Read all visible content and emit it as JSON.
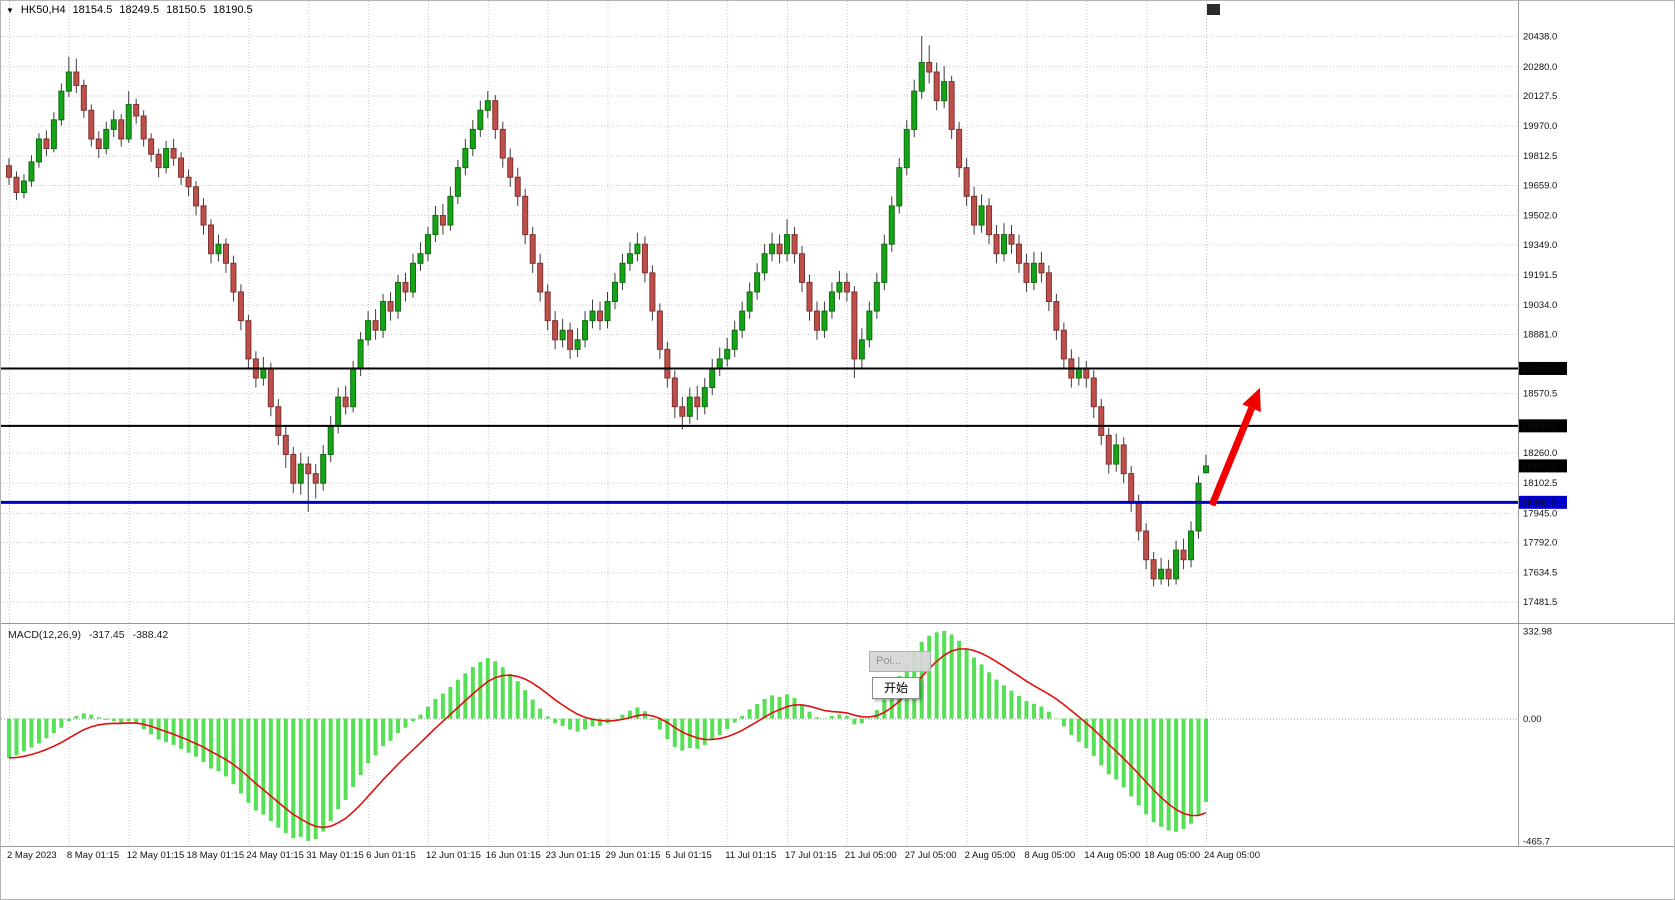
{
  "header": {
    "symbol_period": "HK50,H4",
    "open": "18154.5",
    "high": "18249.5",
    "low": "18150.5",
    "close": "18190.5"
  },
  "indicator": {
    "name": "MACD(12,26,9)",
    "macd_value": "-317.45",
    "signal_value": "-388.42"
  },
  "popup": {
    "tooltip_text": "Poi...",
    "button_label": "开始"
  },
  "colors": {
    "up": "#17a317",
    "down": "#bf4f4a",
    "macd_hist": "#55e055",
    "macd_signal": "#e01010",
    "support_line_blue": "#0000c8",
    "resistance_line_black": "#000000",
    "arrow_red": "#f20000"
  },
  "chart_data": [
    {
      "type": "candlestick",
      "title": "HK50,H4",
      "timeframe": "H4",
      "x_axis_labels": [
        {
          "i": 0,
          "t": "2 May 2023"
        },
        {
          "i": 8,
          "t": "8 May 01:15"
        },
        {
          "i": 16,
          "t": "12 May 01:15"
        },
        {
          "i": 24,
          "t": "18 May 01:15"
        },
        {
          "i": 32,
          "t": "24 May 01:15"
        },
        {
          "i": 40,
          "t": "31 May 01:15"
        },
        {
          "i": 48,
          "t": "6 Jun 01:15"
        },
        {
          "i": 56,
          "t": "12 Jun 01:15"
        },
        {
          "i": 64,
          "t": "16 Jun 01:15"
        },
        {
          "i": 72,
          "t": "23 Jun 01:15"
        },
        {
          "i": 80,
          "t": "29 Jun 01:15"
        },
        {
          "i": 88,
          "t": "5 Jul 01:15"
        },
        {
          "i": 96,
          "t": "11 Jul 01:15"
        },
        {
          "i": 104,
          "t": "17 Jul 01:15"
        },
        {
          "i": 112,
          "t": "21 Jul 05:00"
        },
        {
          "i": 120,
          "t": "27 Jul 05:00"
        },
        {
          "i": 128,
          "t": "2 Aug 05:00"
        },
        {
          "i": 136,
          "t": "8 Aug 05:00"
        },
        {
          "i": 144,
          "t": "14 Aug 05:00"
        },
        {
          "i": 152,
          "t": "18 Aug 05:00"
        },
        {
          "i": 160,
          "t": "24 Aug 05:00"
        }
      ],
      "y_ticks": [
        20438.0,
        20280.0,
        20127.5,
        19970.0,
        19812.5,
        19659.0,
        19502.0,
        19349.0,
        19191.5,
        19034.0,
        18881.0,
        18570.5,
        18260.0,
        18102.5,
        17945.0,
        17792.0,
        17634.5,
        17481.5
      ],
      "ylim": [
        17390,
        20590
      ],
      "hlines": [
        {
          "price": 18700.0,
          "color": "#000000",
          "width": 2
        },
        {
          "price": 18400.0,
          "color": "#000000",
          "width": 2
        },
        {
          "price": 18000.0,
          "color": "#0000c8",
          "width": 3
        }
      ],
      "current_price_tag": 18190.5,
      "up_color": "#17a317",
      "down_color": "#bf4f4a",
      "annotation_arrow": {
        "from": {
          "index": 160.8,
          "price": 17985
        },
        "to": {
          "index": 166.8,
          "price": 18560
        },
        "color": "#f20000"
      },
      "candles": [
        [
          19760,
          19800,
          19660,
          19700
        ],
        [
          19700,
          19730,
          19580,
          19620
        ],
        [
          19620,
          19715,
          19590,
          19680
        ],
        [
          19680,
          19815,
          19650,
          19780
        ],
        [
          19780,
          19930,
          19750,
          19900
        ],
        [
          19900,
          19945,
          19810,
          19850
        ],
        [
          19850,
          20040,
          19830,
          20000
        ],
        [
          20000,
          20190,
          19970,
          20150
        ],
        [
          20150,
          20330,
          20120,
          20250
        ],
        [
          20250,
          20320,
          20140,
          20180
        ],
        [
          20180,
          20210,
          20010,
          20050
        ],
        [
          20050,
          20080,
          19860,
          19900
        ],
        [
          19900,
          19940,
          19800,
          19850
        ],
        [
          19850,
          19990,
          19820,
          19950
        ],
        [
          19950,
          20050,
          19910,
          20000
        ],
        [
          20000,
          20030,
          19860,
          19900
        ],
        [
          19900,
          20150,
          19880,
          20080
        ],
        [
          20080,
          20110,
          19980,
          20020
        ],
        [
          20020,
          20050,
          19860,
          19900
        ],
        [
          19900,
          19930,
          19780,
          19820
        ],
        [
          19820,
          19850,
          19700,
          19750
        ],
        [
          19750,
          19890,
          19720,
          19850
        ],
        [
          19850,
          19900,
          19760,
          19800
        ],
        [
          19800,
          19830,
          19660,
          19700
        ],
        [
          19700,
          19740,
          19600,
          19650
        ],
        [
          19650,
          19680,
          19500,
          19550
        ],
        [
          19550,
          19590,
          19400,
          19450
        ],
        [
          19450,
          19480,
          19250,
          19300
        ],
        [
          19300,
          19400,
          19260,
          19350
        ],
        [
          19350,
          19380,
          19200,
          19250
        ],
        [
          19250,
          19290,
          19050,
          19100
        ],
        [
          19100,
          19140,
          18900,
          18950
        ],
        [
          18950,
          18980,
          18700,
          18750
        ],
        [
          18750,
          18790,
          18600,
          18650
        ],
        [
          18650,
          18760,
          18610,
          18700
        ],
        [
          18700,
          18730,
          18450,
          18500
        ],
        [
          18500,
          18540,
          18300,
          18350
        ],
        [
          18350,
          18400,
          18180,
          18250
        ],
        [
          18250,
          18290,
          18050,
          18100
        ],
        [
          18100,
          18260,
          18040,
          18200
        ],
        [
          18200,
          18240,
          17950,
          18150
        ],
        [
          18150,
          18200,
          18020,
          18100
        ],
        [
          18100,
          18300,
          18060,
          18250
        ],
        [
          18250,
          18450,
          18210,
          18400
        ],
        [
          18400,
          18600,
          18360,
          18550
        ],
        [
          18550,
          18610,
          18460,
          18500
        ],
        [
          18500,
          18740,
          18470,
          18700
        ],
        [
          18700,
          18890,
          18660,
          18850
        ],
        [
          18850,
          19000,
          18820,
          18950
        ],
        [
          18950,
          19010,
          18850,
          18900
        ],
        [
          18900,
          19090,
          18860,
          19050
        ],
        [
          19050,
          19100,
          18950,
          19000
        ],
        [
          19000,
          19190,
          18960,
          19150
        ],
        [
          19150,
          19200,
          19050,
          19100
        ],
        [
          19100,
          19300,
          19070,
          19250
        ],
        [
          19250,
          19360,
          19210,
          19300
        ],
        [
          19300,
          19440,
          19260,
          19400
        ],
        [
          19400,
          19550,
          19360,
          19500
        ],
        [
          19500,
          19560,
          19400,
          19450
        ],
        [
          19450,
          19650,
          19420,
          19600
        ],
        [
          19600,
          19790,
          19560,
          19750
        ],
        [
          19750,
          19900,
          19710,
          19850
        ],
        [
          19850,
          20000,
          19810,
          19950
        ],
        [
          19950,
          20100,
          19910,
          20050
        ],
        [
          20050,
          20150,
          20010,
          20100
        ],
        [
          20100,
          20130,
          19900,
          19950
        ],
        [
          19950,
          19990,
          19750,
          19800
        ],
        [
          19800,
          19850,
          19650,
          19700
        ],
        [
          19700,
          19750,
          19550,
          19600
        ],
        [
          19600,
          19640,
          19350,
          19400
        ],
        [
          19400,
          19440,
          19200,
          19250
        ],
        [
          19250,
          19300,
          19050,
          19100
        ],
        [
          19100,
          19140,
          18900,
          18950
        ],
        [
          18950,
          19000,
          18800,
          18850
        ],
        [
          18850,
          18960,
          18810,
          18900
        ],
        [
          18900,
          18940,
          18750,
          18800
        ],
        [
          18800,
          18910,
          18760,
          18850
        ],
        [
          18850,
          19000,
          18810,
          18950
        ],
        [
          18950,
          19060,
          18910,
          19000
        ],
        [
          19000,
          19050,
          18900,
          18950
        ],
        [
          18950,
          19100,
          18910,
          19050
        ],
        [
          19050,
          19200,
          19010,
          19150
        ],
        [
          19150,
          19300,
          19110,
          19250
        ],
        [
          19250,
          19360,
          19210,
          19300
        ],
        [
          19300,
          19410,
          19260,
          19350
        ],
        [
          19350,
          19390,
          19150,
          19200
        ],
        [
          19200,
          19240,
          18950,
          19000
        ],
        [
          19000,
          19040,
          18750,
          18800
        ],
        [
          18800,
          18840,
          18600,
          18650
        ],
        [
          18650,
          18690,
          18440,
          18500
        ],
        [
          18500,
          18550,
          18380,
          18450
        ],
        [
          18450,
          18600,
          18410,
          18550
        ],
        [
          18550,
          18610,
          18430,
          18500
        ],
        [
          18500,
          18650,
          18460,
          18600
        ],
        [
          18600,
          18750,
          18560,
          18700
        ],
        [
          18700,
          18810,
          18660,
          18750
        ],
        [
          18750,
          18860,
          18710,
          18800
        ],
        [
          18800,
          18950,
          18760,
          18900
        ],
        [
          18900,
          19050,
          18860,
          19000
        ],
        [
          19000,
          19150,
          18960,
          19100
        ],
        [
          19100,
          19250,
          19060,
          19200
        ],
        [
          19200,
          19350,
          19160,
          19300
        ],
        [
          19300,
          19410,
          19260,
          19350
        ],
        [
          19350,
          19400,
          19250,
          19300
        ],
        [
          19300,
          19480,
          19260,
          19400
        ],
        [
          19400,
          19440,
          19250,
          19300
        ],
        [
          19300,
          19340,
          19100,
          19150
        ],
        [
          19150,
          19190,
          18950,
          19000
        ],
        [
          19000,
          19050,
          18850,
          18900
        ],
        [
          18900,
          19050,
          18860,
          19000
        ],
        [
          19000,
          19150,
          18960,
          19100
        ],
        [
          19100,
          19210,
          19060,
          19150
        ],
        [
          19150,
          19200,
          19050,
          19100
        ],
        [
          19100,
          19130,
          18650,
          18750
        ],
        [
          18750,
          18910,
          18700,
          18850
        ],
        [
          18850,
          19050,
          18810,
          19000
        ],
        [
          19000,
          19200,
          18960,
          19150
        ],
        [
          19150,
          19400,
          19110,
          19350
        ],
        [
          19350,
          19600,
          19310,
          19550
        ],
        [
          19550,
          19800,
          19510,
          19750
        ],
        [
          19750,
          20000,
          19710,
          19950
        ],
        [
          19950,
          20210,
          19910,
          20150
        ],
        [
          20150,
          20438,
          20110,
          20300
        ],
        [
          20300,
          20390,
          20190,
          20250
        ],
        [
          20250,
          20300,
          20050,
          20100
        ],
        [
          20100,
          20280,
          20060,
          20200
        ],
        [
          20200,
          20230,
          19900,
          19950
        ],
        [
          19950,
          19990,
          19700,
          19750
        ],
        [
          19750,
          19800,
          19550,
          19600
        ],
        [
          19600,
          19650,
          19400,
          19450
        ],
        [
          19450,
          19610,
          19410,
          19550
        ],
        [
          19550,
          19590,
          19350,
          19400
        ],
        [
          19400,
          19450,
          19250,
          19300
        ],
        [
          19300,
          19460,
          19260,
          19400
        ],
        [
          19400,
          19450,
          19300,
          19350
        ],
        [
          19350,
          19400,
          19200,
          19250
        ],
        [
          19250,
          19300,
          19100,
          19150
        ],
        [
          19150,
          19310,
          19110,
          19250
        ],
        [
          19250,
          19310,
          19150,
          19200
        ],
        [
          19200,
          19240,
          19000,
          19050
        ],
        [
          19050,
          19090,
          18850,
          18900
        ],
        [
          18900,
          18940,
          18700,
          18750
        ],
        [
          18750,
          18800,
          18600,
          18650
        ],
        [
          18650,
          18760,
          18610,
          18700
        ],
        [
          18700,
          18740,
          18600,
          18650
        ],
        [
          18650,
          18690,
          18440,
          18500
        ],
        [
          18500,
          18540,
          18300,
          18350
        ],
        [
          18350,
          18390,
          18150,
          18200
        ],
        [
          18200,
          18360,
          18160,
          18300
        ],
        [
          18300,
          18340,
          18100,
          18150
        ],
        [
          18150,
          18190,
          17950,
          18000
        ],
        [
          18000,
          18040,
          17800,
          17850
        ],
        [
          17850,
          17890,
          17650,
          17700
        ],
        [
          17700,
          17740,
          17560,
          17600
        ],
        [
          17600,
          17710,
          17570,
          17650
        ],
        [
          17650,
          17700,
          17560,
          17600
        ],
        [
          17600,
          17800,
          17570,
          17750
        ],
        [
          17750,
          17810,
          17650,
          17700
        ],
        [
          17700,
          17900,
          17660,
          17850
        ],
        [
          17850,
          18140,
          17810,
          18100
        ],
        [
          18154.5,
          18249.5,
          18150.5,
          18190.5
        ]
      ]
    },
    {
      "type": "bar",
      "title": "MACD(12,26,9)",
      "ylim": [
        -465.7,
        332.98
      ],
      "y_ticks": [
        "332.98",
        "0.00",
        "-465.7"
      ],
      "histogram_color": "#55e055",
      "signal_color": "#e01010",
      "signal_line": {
        "type": "ema",
        "period": 9,
        "color": "#e01010"
      },
      "current_values": {
        "macd": -317.45,
        "signal": -388.42
      },
      "values": [
        -150,
        -140,
        -125,
        -110,
        -95,
        -75,
        -55,
        -35,
        -10,
        10,
        20,
        15,
        5,
        -5,
        -10,
        -20,
        -10,
        -20,
        -40,
        -60,
        -80,
        -90,
        -100,
        -115,
        -130,
        -145,
        -165,
        -190,
        -200,
        -220,
        -250,
        -285,
        -320,
        -350,
        -365,
        -390,
        -415,
        -435,
        -455,
        -450,
        -465,
        -458,
        -430,
        -390,
        -345,
        -310,
        -260,
        -215,
        -170,
        -140,
        -105,
        -85,
        -55,
        -35,
        -10,
        15,
        45,
        75,
        95,
        120,
        148,
        172,
        196,
        215,
        230,
        218,
        195,
        170,
        142,
        108,
        72,
        38,
        8,
        -18,
        -28,
        -42,
        -50,
        -42,
        -30,
        -28,
        -18,
        0,
        15,
        30,
        42,
        28,
        -5,
        -42,
        -78,
        -108,
        -122,
        -112,
        -115,
        -100,
        -82,
        -62,
        -40,
        -15,
        10,
        35,
        55,
        75,
        88,
        82,
        92,
        78,
        52,
        26,
        5,
        0,
        10,
        16,
        10,
        -22,
        -18,
        2,
        32,
        72,
        118,
        162,
        208,
        252,
        292,
        315,
        328,
        333,
        320,
        296,
        266,
        232,
        206,
        176,
        148,
        126,
        106,
        86,
        66,
        56,
        46,
        26,
        0,
        -30,
        -62,
        -88,
        -112,
        -142,
        -178,
        -212,
        -232,
        -262,
        -296,
        -330,
        -364,
        -394,
        -412,
        -426,
        -431,
        -420,
        -400,
        -368,
        -317
      ]
    }
  ]
}
